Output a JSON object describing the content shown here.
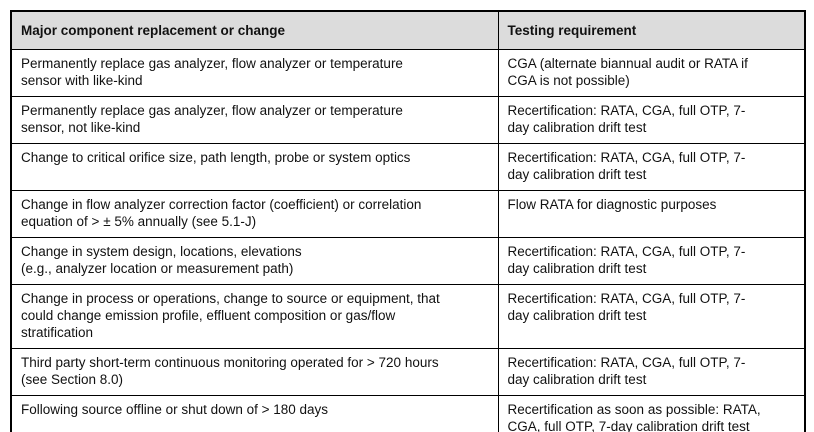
{
  "colors": {
    "header_bg": "#dcdcdc",
    "border": "#000000",
    "text": "#111111",
    "page_bg": "#ffffff"
  },
  "table": {
    "columns": [
      {
        "label": "Major component replacement or change"
      },
      {
        "label": "Testing requirement"
      }
    ],
    "rows": [
      {
        "change": "Permanently replace gas analyzer, flow analyzer or temperature\nsensor with like-kind",
        "requirement": "CGA (alternate biannual audit or RATA if\nCGA is not possible)"
      },
      {
        "change": "Permanently replace gas analyzer, flow analyzer or temperature\nsensor, not like-kind",
        "requirement": "Recertification: RATA, CGA, full OTP, 7-\nday calibration drift test"
      },
      {
        "change": "Change to critical orifice size, path length, probe or system optics",
        "requirement": "Recertification: RATA, CGA, full OTP, 7-\nday calibration drift test"
      },
      {
        "change": "Change in flow analyzer correction factor (coefficient) or correlation\nequation of > ± 5% annually (see 5.1-J)",
        "requirement": "Flow RATA for diagnostic purposes"
      },
      {
        "change": "Change in system design, locations, elevations\n(e.g., analyzer location or measurement path)",
        "requirement": "Recertification: RATA, CGA, full OTP, 7-\nday calibration drift test"
      },
      {
        "change": "Change in process or operations, change to source or equipment, that\ncould change emission profile, effluent composition or gas/flow\nstratification",
        "requirement": "Recertification: RATA, CGA, full OTP, 7-\nday calibration drift test"
      },
      {
        "change": "Third party short-term continuous monitoring operated for > 720 hours\n(see Section 8.0)",
        "requirement": "Recertification: RATA, CGA, full OTP, 7-\nday calibration drift test"
      },
      {
        "change": "Following source offline or shut down of > 180 days",
        "requirement": "Recertification as soon as possible: RATA,\nCGA, full OTP, 7-day calibration drift test"
      }
    ]
  }
}
